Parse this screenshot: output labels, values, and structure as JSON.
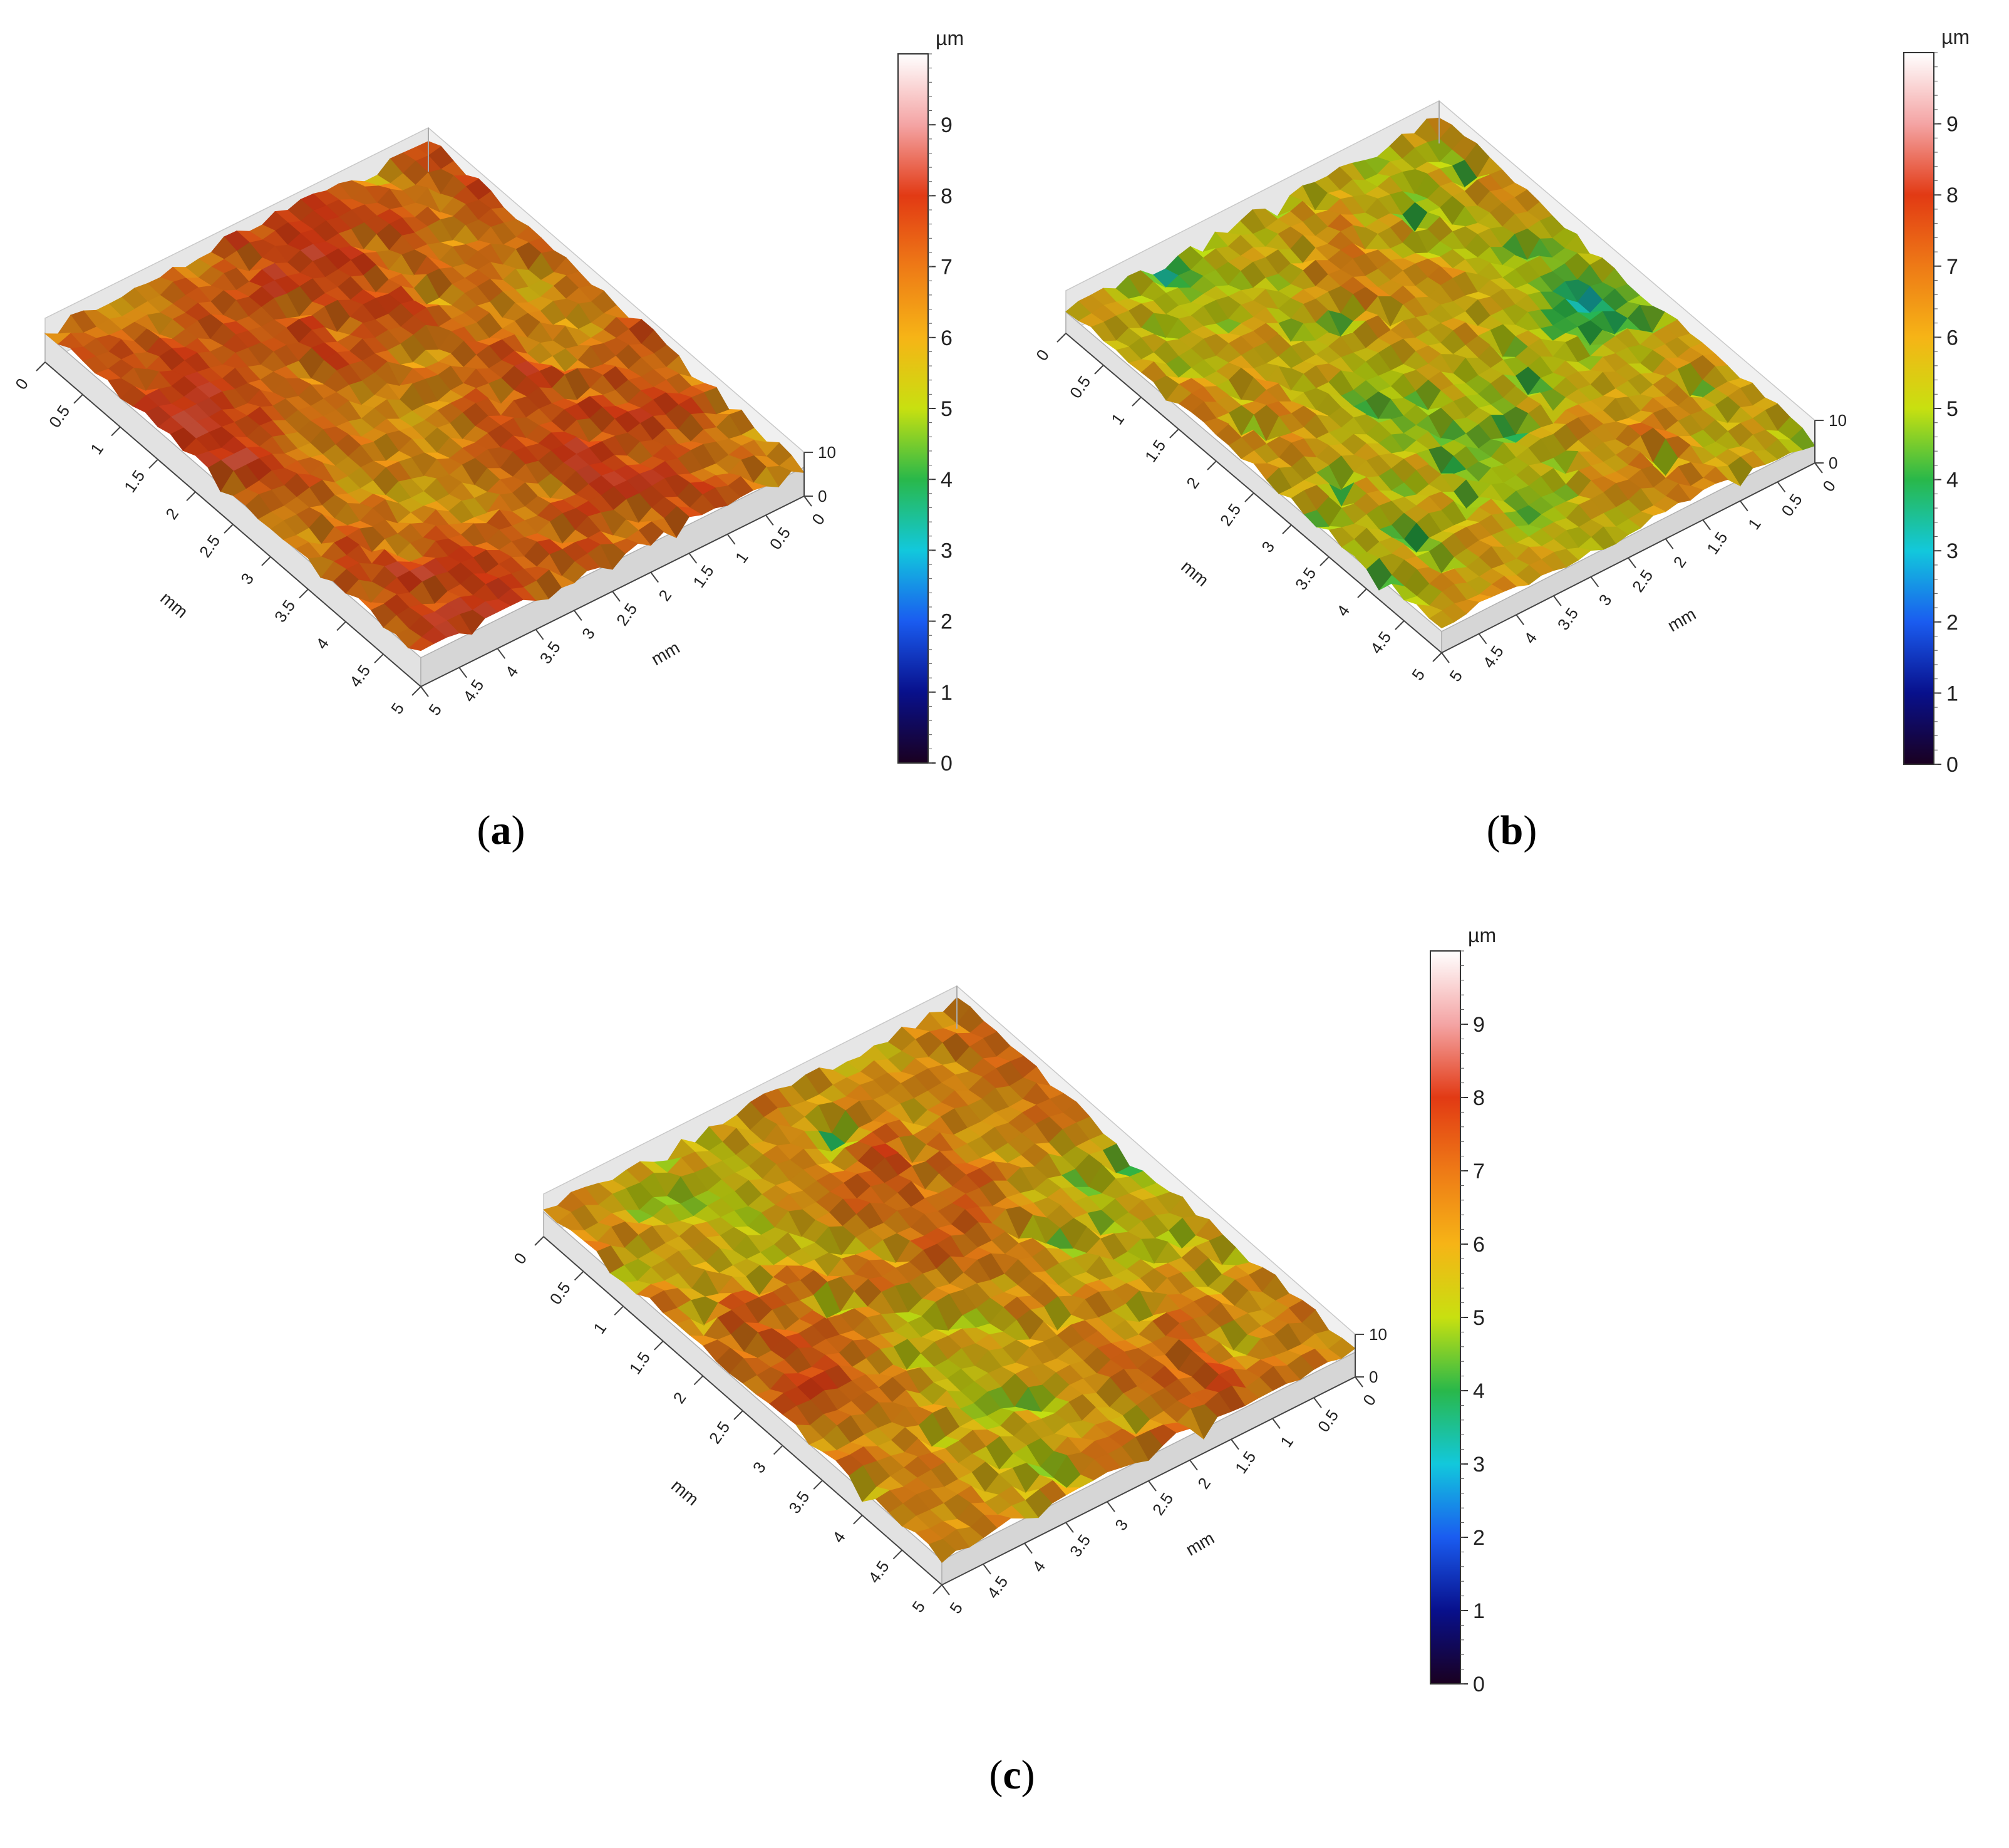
{
  "colorbar": {
    "unit": "µm",
    "ticks": [
      "0",
      "1",
      "2",
      "3",
      "4",
      "5",
      "6",
      "7",
      "8",
      "9"
    ],
    "stops": [
      "#1a0020",
      "#08108c",
      "#1a5cf0",
      "#12c8dc",
      "#29b84a",
      "#c8e010",
      "#f6b416",
      "#ee7a16",
      "#e23a14",
      "#f4a4a4",
      "#ffffff"
    ]
  },
  "chart_data": [
    {
      "panel": "a",
      "type": "surface3d",
      "caption": {
        "open": "(",
        "letter": "a",
        "close": ")"
      },
      "x_axis": {
        "label": "mm",
        "ticks": [
          "0",
          "0.5",
          "1",
          "1.5",
          "2",
          "2.5",
          "3",
          "3.5",
          "4",
          "4.5",
          "5"
        ],
        "range": [
          0,
          5
        ]
      },
      "y_axis": {
        "label": "mm",
        "ticks": [
          "0",
          "0.5",
          "1",
          "1.5",
          "2",
          "2.5",
          "3",
          "3.5",
          "4",
          "4.5",
          "5"
        ],
        "range": [
          0,
          5
        ]
      },
      "z_axis": {
        "unit": "µm",
        "ticks": [
          "0",
          "10"
        ],
        "range": [
          0,
          10
        ]
      },
      "colorbar_range": [
        0,
        10
      ],
      "mean_height_um": 7.2,
      "texture": {
        "min_um": 5.0,
        "max_um": 8.3
      },
      "seed": 11
    },
    {
      "panel": "b",
      "type": "surface3d",
      "caption": {
        "open": "(",
        "letter": "b",
        "close": ")"
      },
      "x_axis": {
        "label": "mm",
        "ticks": [
          "0",
          "0.5",
          "1",
          "1.5",
          "2",
          "2.5",
          "3",
          "3.5",
          "4",
          "4.5",
          "5"
        ],
        "range": [
          0,
          5
        ]
      },
      "y_axis": {
        "label": "mm",
        "ticks": [
          "0",
          "0.5",
          "1",
          "1.5",
          "2",
          "2.5",
          "3",
          "3.5",
          "4",
          "4.5",
          "5"
        ],
        "range": [
          0,
          5
        ]
      },
      "z_axis": {
        "unit": "µm",
        "ticks": [
          "0",
          "10"
        ],
        "range": [
          0,
          10
        ]
      },
      "colorbar_range": [
        0,
        10
      ],
      "mean_height_um": 5.6,
      "texture": {
        "min_um": 2.2,
        "max_um": 8.0
      },
      "seed": 29
    },
    {
      "panel": "c",
      "type": "surface3d",
      "caption": {
        "open": "(",
        "letter": "c",
        "close": ")"
      },
      "x_axis": {
        "label": "mm",
        "ticks": [
          "0",
          "0.5",
          "1",
          "1.5",
          "2",
          "2.5",
          "3",
          "3.5",
          "4",
          "4.5",
          "5"
        ],
        "range": [
          0,
          5
        ]
      },
      "y_axis": {
        "label": "mm",
        "ticks": [
          "0",
          "0.5",
          "1",
          "1.5",
          "2",
          "2.5",
          "3",
          "3.5",
          "4",
          "4.5",
          "5"
        ],
        "range": [
          0,
          5
        ]
      },
      "z_axis": {
        "unit": "µm",
        "ticks": [
          "0",
          "10"
        ],
        "range": [
          0,
          10
        ]
      },
      "colorbar_range": [
        0,
        10
      ],
      "mean_height_um": 6.4,
      "texture": {
        "min_um": 3.2,
        "max_um": 8.3
      },
      "seed": 47
    }
  ]
}
